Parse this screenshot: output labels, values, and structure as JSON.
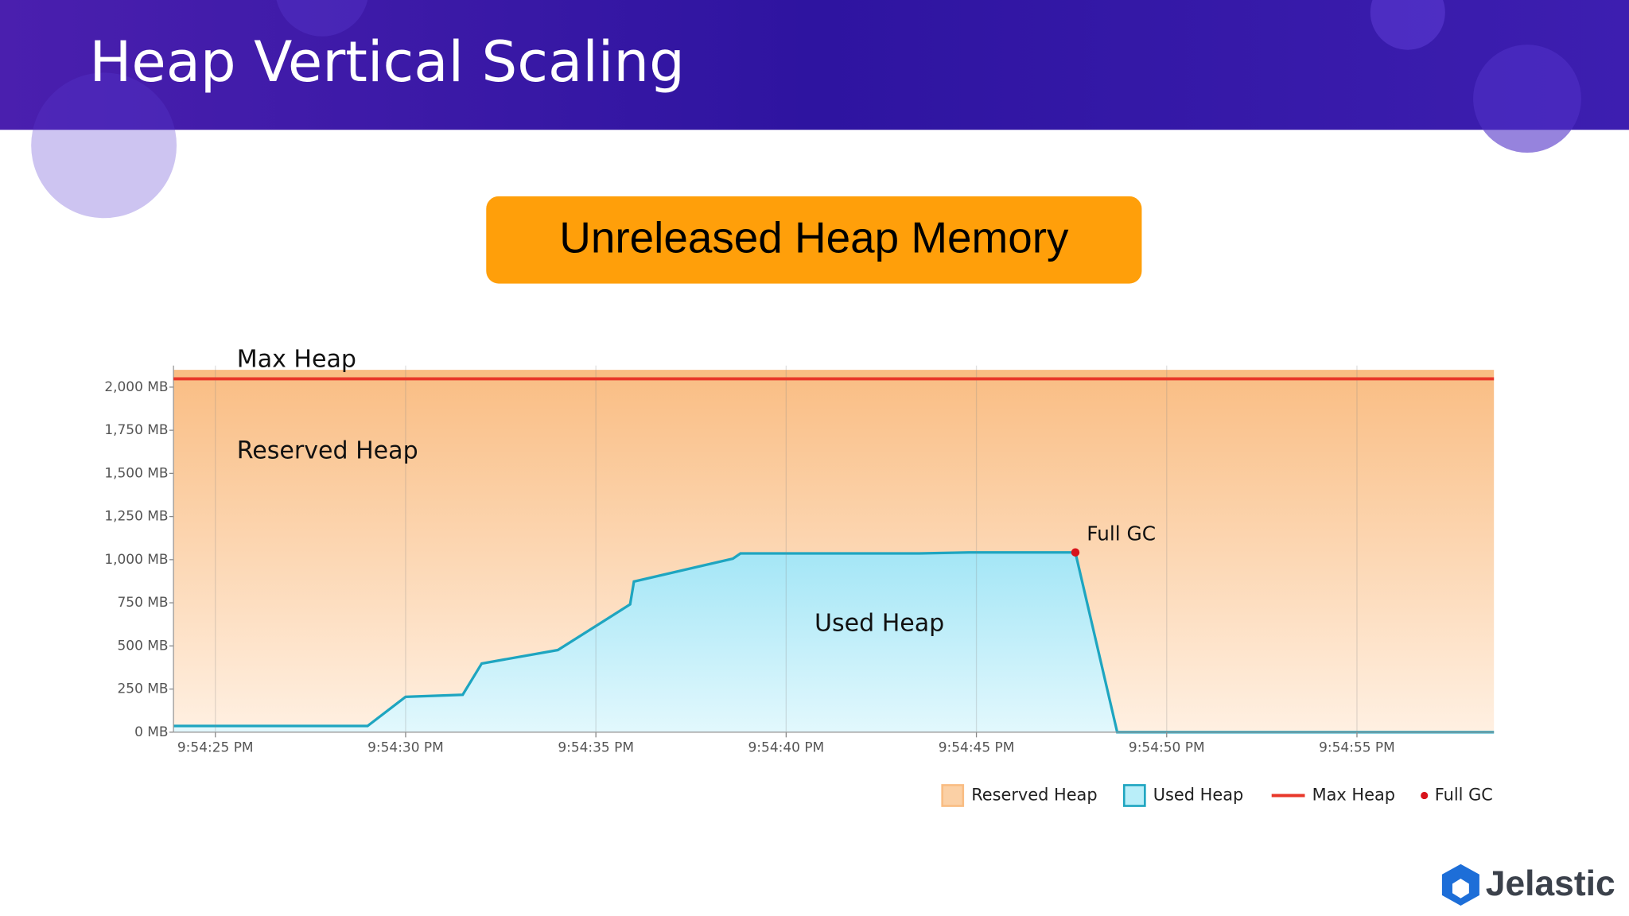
{
  "header": {
    "title": "Heap Vertical Scaling"
  },
  "badge": {
    "text": "Unreleased Heap Memory"
  },
  "logo": {
    "text": "Jelastic"
  },
  "chart_data": {
    "type": "area",
    "xlim": [
      "9:54:23.9 PM",
      "9:54:58.6 PM"
    ],
    "xticks": [
      "9:54:25 PM",
      "9:54:30 PM",
      "9:54:35 PM",
      "9:54:40 PM",
      "9:54:45 PM",
      "9:54:50 PM",
      "9:54:55 PM"
    ],
    "ylim": [
      0,
      2125
    ],
    "yticks": [
      {
        "value": 0,
        "label": "0 MB"
      },
      {
        "value": 250,
        "label": "250 MB"
      },
      {
        "value": 500,
        "label": "500 MB"
      },
      {
        "value": 750,
        "label": "750 MB"
      },
      {
        "value": 1000,
        "label": "1,000 MB"
      },
      {
        "value": 1250,
        "label": "1,250 MB"
      },
      {
        "value": 1500,
        "label": "1,500 MB"
      },
      {
        "value": 1750,
        "label": "1,750 MB"
      },
      {
        "value": 2000,
        "label": "2,000 MB"
      }
    ],
    "grid": "x",
    "annotations": [
      "Max Heap",
      "Reserved Heap",
      "Used Heap",
      "Full GC"
    ],
    "series": [
      {
        "name": "Reserved Heap",
        "kind": "area",
        "color": "#f9bd83",
        "x": [
          "9:54:23.9 PM",
          "9:54:58.6 PM"
        ],
        "values": [
          2100,
          2100
        ]
      },
      {
        "name": "Used Heap",
        "kind": "area",
        "color": "#1ea5c0",
        "x": [
          "9:54:23.9 PM",
          "9:54:29.0 PM",
          "9:54:30.0 PM",
          "9:54:31.5 PM",
          "9:54:32.0 PM",
          "9:54:34.0 PM",
          "9:54:35.9 PM",
          "9:54:36.0 PM",
          "9:54:38.6 PM",
          "9:54:38.8 PM",
          "9:54:43.5 PM",
          "9:54:44.8 PM",
          "9:54:47.6 PM",
          "9:54:48.7 PM",
          "9:54:58.6 PM"
        ],
        "values": [
          36,
          36,
          205,
          217,
          398,
          476,
          741,
          873,
          1006,
          1036,
          1036,
          1042,
          1042,
          0,
          0
        ]
      },
      {
        "name": "Max Heap",
        "kind": "line",
        "color": "#e8372a",
        "x": [
          "9:54:23.9 PM",
          "9:54:58.6 PM"
        ],
        "values": [
          2048,
          2048
        ]
      },
      {
        "name": "Full GC",
        "kind": "marker",
        "color": "#d8141c",
        "x": [
          "9:54:47.6 PM"
        ],
        "values": [
          1042
        ]
      }
    ]
  }
}
